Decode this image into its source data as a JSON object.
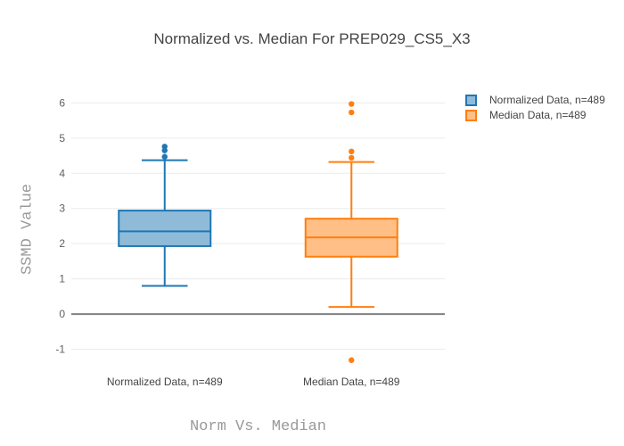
{
  "chart_data": {
    "type": "box",
    "title": "Normalized vs. Median For PREP029_CS5_X3",
    "xlabel": "Norm Vs. Median",
    "ylabel": "SSMD Value",
    "ylim": [
      -1.57,
      6.77
    ],
    "yticks": [
      -1,
      0,
      1,
      2,
      3,
      4,
      5,
      6
    ],
    "grid": true,
    "legend_position": "outside-top-right",
    "categories": [
      "Normalized Data, n=489",
      "Median Data, n=489"
    ],
    "series": [
      {
        "name": "Normalized Data, n=489",
        "color": "#1f77b4",
        "fill_color": "#8fbbd9",
        "q1": 1.93,
        "median": 2.35,
        "q3": 2.94,
        "whisker_low": 0.8,
        "whisker_high": 4.37,
        "outliers": [
          4.76,
          4.65,
          4.47
        ]
      },
      {
        "name": "Median Data, n=489",
        "color": "#ff7f0e",
        "fill_color": "#ffbf86",
        "q1": 1.63,
        "median": 2.18,
        "q3": 2.71,
        "whisker_low": 0.2,
        "whisker_high": 4.32,
        "outliers": [
          5.97,
          5.73,
          4.62,
          4.44,
          -1.31
        ]
      }
    ],
    "colors": {
      "grid": "#ebebeb",
      "zeroline": "#808080",
      "tick_label": "#606060",
      "category_label": "#444444",
      "title": "#444444",
      "axis_title": "#999999"
    }
  }
}
